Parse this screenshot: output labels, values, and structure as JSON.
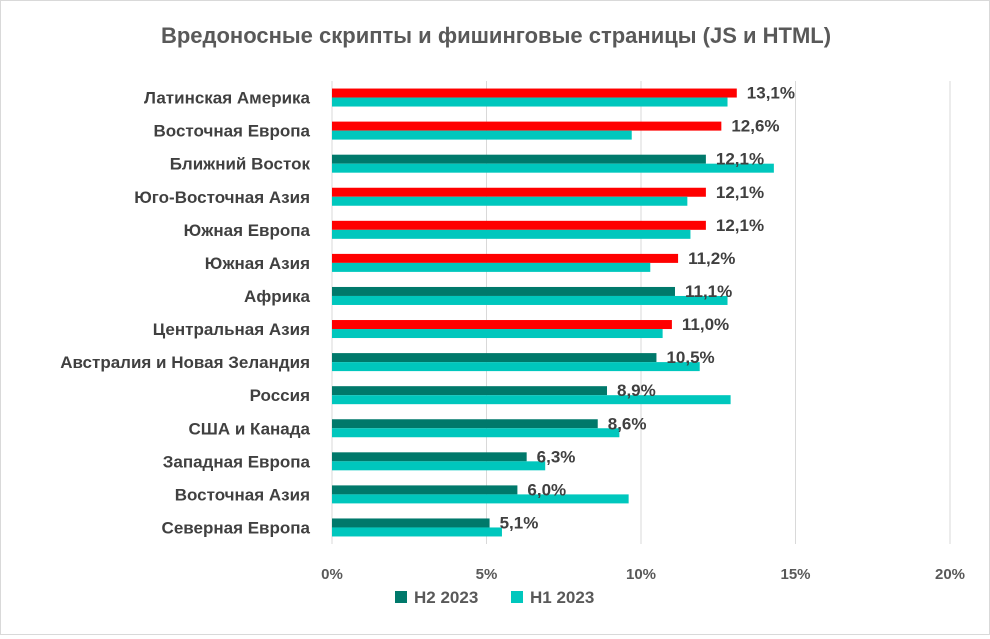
{
  "chart_data": {
    "type": "bar",
    "orientation": "horizontal",
    "title": "Вредоносные скрипты и фишинговые страницы (JS и HTML)",
    "categories": [
      "Латинская Америка",
      "Восточная Европа",
      "Ближний Восток",
      "Юго-Восточная Азия",
      "Южная Европа",
      "Южная Азия",
      "Африка",
      "Центральная Азия",
      "Австралия и Новая Зеландия",
      "Россия",
      "США и Канада",
      "Западная Европа",
      "Восточная Азия",
      "Северная Европа"
    ],
    "series": [
      {
        "name": "H2 2023",
        "values": [
          13.1,
          12.6,
          12.1,
          12.1,
          12.1,
          11.2,
          11.1,
          11.0,
          10.5,
          8.9,
          8.6,
          6.3,
          6.0,
          5.1
        ],
        "labels": [
          "13,1%",
          "12,6%",
          "12,1%",
          "12,1%",
          "12,1%",
          "11,2%",
          "11,1%",
          "11,0%",
          "10,5%",
          "8,9%",
          "8,6%",
          "6,3%",
          "6,0%",
          "5,1%"
        ],
        "colors": [
          "#ff0000",
          "#ff0000",
          "#00796b",
          "#ff0000",
          "#ff0000",
          "#ff0000",
          "#00796b",
          "#ff0000",
          "#00796b",
          "#00796b",
          "#00796b",
          "#00796b",
          "#00796b",
          "#00796b"
        ]
      },
      {
        "name": "H1 2023",
        "values": [
          12.8,
          9.7,
          14.3,
          11.5,
          11.6,
          10.3,
          12.8,
          10.7,
          11.9,
          12.9,
          9.3,
          6.9,
          9.6,
          5.5
        ],
        "color": "#00c7bd"
      }
    ],
    "xlim": [
      0,
      20
    ],
    "xticks": [
      0,
      5,
      10,
      15,
      20
    ],
    "xtick_labels": [
      "0%",
      "5%",
      "10%",
      "15%",
      "20%"
    ],
    "grid": "vertical",
    "legend": "bottom",
    "legend_colors": {
      "H2 2023": "#00796b",
      "H1 2023": "#00c7bd"
    }
  }
}
